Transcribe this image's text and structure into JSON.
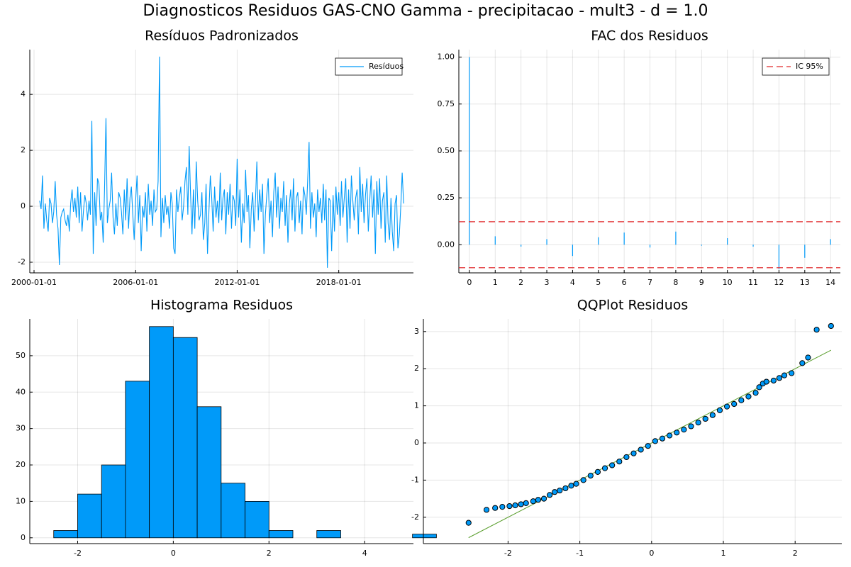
{
  "title": "Diagnosticos Residuos  GAS-CNO Gamma - precipitacao - mult3 - d = 1.0",
  "chart_data": [
    {
      "type": "line",
      "title": "Resíduos Padronizados",
      "grid": true,
      "legend": "top right",
      "x": [
        "2000-05-01",
        "2000-06-01",
        "2000-07-01",
        "2000-08-01",
        "2000-09-01",
        "2000-10-01",
        "2000-11-01",
        "2000-12-01",
        "2001-01-01",
        "2001-02-01",
        "2001-03-01",
        "2001-04-01",
        "2001-05-01",
        "2001-06-01",
        "2001-07-01",
        "2001-08-01",
        "2001-09-01",
        "2001-10-01",
        "2001-11-01",
        "2001-12-01",
        "2002-01-01",
        "2002-02-01",
        "2002-03-01",
        "2002-04-01",
        "2002-05-01",
        "2002-06-01",
        "2002-07-01",
        "2002-08-01",
        "2002-09-01",
        "2002-10-01",
        "2002-11-01",
        "2002-12-01",
        "2003-01-01",
        "2003-02-01",
        "2003-03-01",
        "2003-04-01",
        "2003-05-01",
        "2003-06-01",
        "2003-07-01",
        "2003-08-01",
        "2003-09-01",
        "2003-10-01",
        "2003-11-01",
        "2003-12-01",
        "2004-01-01",
        "2004-02-01",
        "2004-03-01",
        "2004-04-01",
        "2004-05-01",
        "2004-06-01",
        "2004-07-01",
        "2004-08-01",
        "2004-09-01",
        "2004-10-01",
        "2004-11-01",
        "2004-12-01",
        "2005-01-01",
        "2005-02-01",
        "2005-03-01",
        "2005-04-01",
        "2005-05-01",
        "2005-06-01",
        "2005-07-01",
        "2005-08-01",
        "2005-09-01",
        "2005-10-01",
        "2005-11-01",
        "2005-12-01",
        "2006-01-01",
        "2006-02-01",
        "2006-03-01",
        "2006-04-01",
        "2006-05-01",
        "2006-06-01",
        "2006-07-01",
        "2006-08-01",
        "2006-09-01",
        "2006-10-01",
        "2006-11-01",
        "2006-12-01",
        "2007-01-01",
        "2007-02-01",
        "2007-03-01",
        "2007-04-01",
        "2007-05-01",
        "2007-06-01",
        "2007-07-01",
        "2007-08-01",
        "2007-09-01",
        "2007-10-01",
        "2007-11-01",
        "2007-12-01",
        "2008-01-01",
        "2008-02-01",
        "2008-03-01",
        "2008-04-01",
        "2008-05-01",
        "2008-06-01",
        "2008-07-01",
        "2008-08-01",
        "2008-09-01",
        "2008-10-01",
        "2008-11-01",
        "2008-12-01",
        "2009-01-01",
        "2009-02-01",
        "2009-03-01",
        "2009-04-01",
        "2009-05-01",
        "2009-06-01",
        "2009-07-01",
        "2009-08-01",
        "2009-09-01",
        "2009-10-01",
        "2009-11-01",
        "2009-12-01",
        "2010-01-01",
        "2010-02-01",
        "2010-03-01",
        "2010-04-01",
        "2010-05-01",
        "2010-06-01",
        "2010-07-01",
        "2010-08-01",
        "2010-09-01",
        "2010-10-01",
        "2010-11-01",
        "2010-12-01",
        "2011-01-01",
        "2011-02-01",
        "2011-03-01",
        "2011-04-01",
        "2011-05-01",
        "2011-06-01",
        "2011-07-01",
        "2011-08-01",
        "2011-09-01",
        "2011-10-01",
        "2011-11-01",
        "2011-12-01",
        "2012-01-01",
        "2012-02-01",
        "2012-03-01",
        "2012-04-01",
        "2012-05-01",
        "2012-06-01",
        "2012-07-01",
        "2012-08-01",
        "2012-09-01",
        "2012-10-01",
        "2012-11-01",
        "2012-12-01",
        "2013-01-01",
        "2013-02-01",
        "2013-03-01",
        "2013-04-01",
        "2013-05-01",
        "2013-06-01",
        "2013-07-01",
        "2013-08-01",
        "2013-09-01",
        "2013-10-01",
        "2013-11-01",
        "2013-12-01",
        "2014-01-01",
        "2014-02-01",
        "2014-03-01",
        "2014-04-01",
        "2014-05-01",
        "2014-06-01",
        "2014-07-01",
        "2014-08-01",
        "2014-09-01",
        "2014-10-01",
        "2014-11-01",
        "2014-12-01",
        "2015-01-01",
        "2015-02-01",
        "2015-03-01",
        "2015-04-01",
        "2015-05-01",
        "2015-06-01",
        "2015-07-01",
        "2015-08-01",
        "2015-09-01",
        "2015-10-01",
        "2015-11-01",
        "2015-12-01",
        "2016-01-01",
        "2016-02-01",
        "2016-03-01",
        "2016-04-01",
        "2016-05-01",
        "2016-06-01",
        "2016-07-01",
        "2016-08-01",
        "2016-09-01",
        "2016-10-01",
        "2016-11-01",
        "2016-12-01",
        "2017-01-01",
        "2017-02-01",
        "2017-03-01",
        "2017-04-01",
        "2017-05-01",
        "2017-06-01",
        "2017-07-01",
        "2017-08-01",
        "2017-09-01",
        "2017-10-01",
        "2017-11-01",
        "2017-12-01",
        "2018-01-01",
        "2018-02-01",
        "2018-03-01",
        "2018-04-01",
        "2018-05-01",
        "2018-06-01",
        "2018-07-01",
        "2018-08-01",
        "2018-09-01",
        "2018-10-01",
        "2018-11-01",
        "2018-12-01",
        "2019-01-01",
        "2019-02-01",
        "2019-03-01",
        "2019-04-01",
        "2019-05-01",
        "2019-06-01",
        "2019-07-01",
        "2019-08-01",
        "2019-09-01",
        "2019-10-01",
        "2019-11-01",
        "2019-12-01",
        "2020-01-01",
        "2020-02-01",
        "2020-03-01",
        "2020-04-01",
        "2020-05-01",
        "2020-06-01",
        "2020-07-01",
        "2020-08-01",
        "2020-09-01",
        "2020-10-01",
        "2020-11-01",
        "2020-12-01",
        "2021-01-01",
        "2021-02-01",
        "2021-03-01",
        "2021-04-01",
        "2021-05-01",
        "2021-06-01",
        "2021-07-01",
        "2021-08-01",
        "2021-09-01",
        "2021-10-01",
        "2021-11-01"
      ],
      "series": [
        {
          "name": "Resíduos",
          "color": "#009af9",
          "values": [
            0.2,
            -0.1,
            1.1,
            -0.8,
            0.1,
            -0.5,
            -0.9,
            0.3,
            0.1,
            -0.6,
            -0.2,
            0.9,
            -0.3,
            -0.8,
            -2.1,
            -0.4,
            -0.2,
            -0.1,
            -0.5,
            -0.7,
            -0.3,
            -0.9,
            0.1,
            0.6,
            -0.2,
            0.3,
            -0.4,
            0.7,
            -0.6,
            0.5,
            -0.9,
            -0.2,
            0.4,
            0.1,
            -0.5,
            0.2,
            -0.3,
            3.05,
            -1.7,
            0.5,
            -0.7,
            1.0,
            0.8,
            -0.5,
            -0.2,
            -1.3,
            0.6,
            3.15,
            -0.6,
            -0.1,
            0.2,
            1.2,
            -0.4,
            -1.0,
            0.1,
            -0.7,
            0.5,
            0.3,
            -0.2,
            -1.0,
            0.6,
            -0.5,
            1.0,
            -0.8,
            0.3,
            0.7,
            -0.3,
            -1.2,
            0.2,
            1.1,
            -0.6,
            0.4,
            -1.6,
            0.0,
            -0.4,
            0.5,
            -0.9,
            0.8,
            -0.3,
            0.2,
            -0.7,
            0.6,
            -0.2,
            -0.1,
            0.9,
            5.35,
            -1.1,
            0.3,
            -0.6,
            0.4,
            -0.3,
            0.0,
            -0.8,
            0.5,
            0.1,
            -1.5,
            -1.7,
            0.6,
            -0.2,
            0.3,
            0.7,
            -0.5,
            0.0,
            0.9,
            1.4,
            -0.3,
            2.15,
            0.4,
            -1.0,
            0.6,
            -0.8,
            1.6,
            0.2,
            -0.5,
            -0.3,
            0.5,
            -1.2,
            -0.6,
            0.8,
            -1.7,
            -0.2,
            1.1,
            0.3,
            -0.9,
            0.7,
            -0.4,
            0.2,
            -0.6,
            1.2,
            -0.5,
            0.3,
            0.6,
            -1.0,
            0.5,
            -0.3,
            0.8,
            -0.8,
            0.4,
            0.2,
            -0.7,
            1.7,
            -0.4,
            0.6,
            -1.3,
            0.1,
            -0.6,
            1.3,
            -0.2,
            0.4,
            -1.5,
            -0.1,
            0.5,
            -0.9,
            0.3,
            1.6,
            -0.5,
            0.6,
            -0.2,
            0.8,
            -1.7,
            -0.3,
            0.4,
            1.0,
            -0.6,
            0.2,
            -1.1,
            0.5,
            1.2,
            -0.4,
            0.7,
            -0.8,
            0.3,
            -0.2,
            0.9,
            -0.7,
            0.4,
            -1.3,
            0.1,
            0.6,
            -0.5,
            1.0,
            -0.9,
            0.3,
            0.5,
            -0.6,
            0.2,
            -1.0,
            0.7,
            0.4,
            -0.3,
            0.9,
            2.3,
            -0.8,
            0.5,
            -0.4,
            0.1,
            -1.1,
            0.6,
            -0.2,
            0.3,
            -0.6,
            0.8,
            -0.5,
            0.6,
            -2.2,
            0.3,
            0.2,
            -1.6,
            0.4,
            -0.9,
            0.7,
            -0.3,
            0.5,
            -0.7,
            0.9,
            -0.4,
            0.3,
            1.0,
            -1.3,
            0.6,
            -0.8,
            1.1,
            0.2,
            -0.5,
            0.3,
            0.6,
            -1.0,
            1.4,
            -0.2,
            0.8,
            -0.6,
            0.4,
            1.0,
            -0.9,
            0.2,
            1.1,
            -0.4,
            0.6,
            -1.7,
            0.9,
            -0.3,
            1.0,
            -0.8,
            0.2,
            0.5,
            -1.3,
            1.1,
            -0.6,
            -1.2,
            0.3,
            -0.9,
            -1.6,
            0.1,
            0.4,
            -1.5,
            -1.0,
            0.0,
            1.2,
            0.1
          ]
        }
      ],
      "xlim": [
        "1999-10-01",
        "2022-06-01"
      ],
      "xticks": [
        "2000-01-01",
        "2006-01-01",
        "2012-01-01",
        "2018-01-01"
      ],
      "ylim": [
        -2.38,
        5.6
      ],
      "yticks": [
        -2,
        0,
        2,
        4
      ]
    },
    {
      "type": "bar",
      "title": "FAC dos Residuos",
      "grid": true,
      "legend": "top right",
      "color": "#009af9",
      "x": [
        0,
        1,
        2,
        3,
        4,
        5,
        6,
        7,
        8,
        9,
        10,
        11,
        12,
        13,
        14
      ],
      "values": [
        1.0,
        0.045,
        -0.01,
        0.03,
        -0.06,
        0.04,
        0.065,
        -0.015,
        0.07,
        -0.005,
        0.035,
        -0.01,
        -0.13,
        -0.07,
        0.03
      ],
      "ci": {
        "name": "IC 95%",
        "color": "#e0292b",
        "values": [
          0.1225,
          -0.1225
        ]
      },
      "xlim": [
        -0.41,
        14.38
      ],
      "xticks": [
        0,
        1,
        2,
        3,
        4,
        5,
        6,
        7,
        8,
        9,
        10,
        11,
        12,
        13,
        14
      ],
      "ylim": [
        -0.15,
        1.04
      ],
      "yticks": [
        {
          "value": 0,
          "label": "0.00"
        },
        {
          "value": 0.25,
          "label": "0.25"
        },
        {
          "value": 0.5,
          "label": "0.50"
        },
        {
          "value": 0.75,
          "label": "0.75"
        },
        {
          "value": 1,
          "label": "1.00"
        }
      ]
    },
    {
      "type": "histogram",
      "title": "Histograma Residuos",
      "grid": true,
      "color": "#009af9",
      "bins": [
        -2.5,
        -2,
        -1.5,
        -1,
        -0.5,
        0,
        0.5,
        1,
        1.5,
        2,
        2.5,
        3,
        3.5,
        4,
        4.5,
        5,
        5.5
      ],
      "values": [
        2,
        12,
        20,
        43,
        58,
        55,
        36,
        15,
        10,
        2,
        0,
        2,
        0,
        0,
        0,
        1
      ],
      "xlim": [
        -3,
        5.02
      ],
      "xticks": [
        -2,
        0,
        2,
        4
      ],
      "ylim": [
        -1.6,
        60.1
      ],
      "yticks": [
        0,
        10,
        20,
        30,
        40,
        50
      ]
    },
    {
      "type": "scatter",
      "title": "QQPlot Residuos",
      "grid": true,
      "color": "#009af9",
      "x": [
        -2.55,
        -2.3,
        -2.18,
        -2.08,
        -1.98,
        -1.9,
        -1.82,
        -1.75,
        -1.65,
        -1.58,
        -1.5,
        -1.42,
        -1.35,
        -1.28,
        -1.2,
        -1.12,
        -1.05,
        -0.95,
        -0.85,
        -0.75,
        -0.65,
        -0.55,
        -0.45,
        -0.35,
        -0.25,
        -0.15,
        -0.05,
        0.05,
        0.15,
        0.25,
        0.35,
        0.45,
        0.55,
        0.65,
        0.75,
        0.85,
        0.95,
        1.05,
        1.15,
        1.25,
        1.35,
        1.45,
        1.5,
        1.55,
        1.6,
        1.7,
        1.78,
        1.85,
        1.95,
        2.1,
        2.18,
        2.3,
        2.5
      ],
      "values": [
        -2.15,
        -1.8,
        -1.75,
        -1.72,
        -1.7,
        -1.68,
        -1.65,
        -1.62,
        -1.57,
        -1.53,
        -1.5,
        -1.4,
        -1.32,
        -1.28,
        -1.22,
        -1.15,
        -1.1,
        -1.0,
        -0.88,
        -0.78,
        -0.68,
        -0.6,
        -0.5,
        -0.38,
        -0.28,
        -0.18,
        -0.08,
        0.05,
        0.12,
        0.2,
        0.28,
        0.36,
        0.45,
        0.55,
        0.65,
        0.75,
        0.88,
        0.98,
        1.05,
        1.15,
        1.25,
        1.35,
        1.5,
        1.6,
        1.65,
        1.68,
        1.75,
        1.82,
        1.88,
        2.15,
        2.3,
        3.05,
        3.15
      ],
      "reference_line": {
        "color": "#5a9e2d",
        "x": [
          -2.55,
          2.5
        ],
        "values": [
          -2.55,
          2.5
        ]
      },
      "xlim": [
        -3.18,
        2.65
      ],
      "xticks": [
        -2,
        -1,
        0,
        1,
        2
      ],
      "ylim": [
        -2.71,
        3.34
      ],
      "yticks": [
        -2,
        -1,
        0,
        1,
        2,
        3
      ]
    }
  ]
}
